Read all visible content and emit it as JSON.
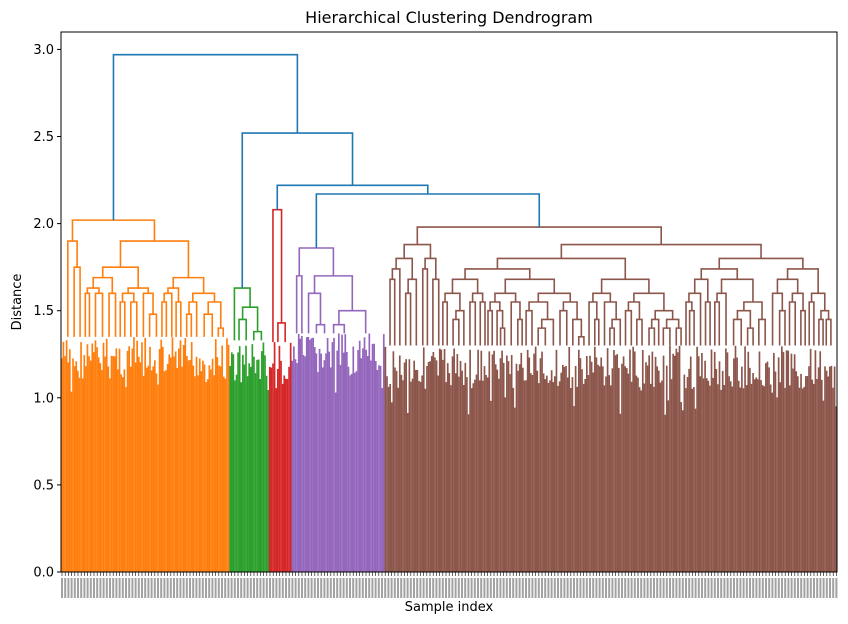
{
  "chart_data": {
    "type": "dendrogram",
    "title": "Hierarchical Clustering Dendrogram",
    "xlabel": "Sample index",
    "ylabel": "Distance",
    "ylim": [
      0,
      3.1
    ],
    "yticks": [
      "0.0",
      "0.5",
      "1.0",
      "1.5",
      "2.0",
      "2.5",
      "3.0"
    ],
    "link_color": "#1f77b4",
    "clusters": [
      {
        "color": "#ff7f0e",
        "leaf_fraction": 0.217,
        "top_height": 2.02,
        "sub_merges": [
          1.96,
          1.9,
          1.75,
          1.69,
          1.63,
          1.6,
          1.55,
          1.48,
          1.4
        ]
      },
      {
        "color": "#2ca02c",
        "leaf_fraction": 0.051,
        "top_height": 1.63,
        "sub_merges": [
          1.57,
          1.52,
          1.45,
          1.38
        ]
      },
      {
        "color": "#d62728",
        "leaf_fraction": 0.029,
        "top_height": 2.08,
        "sub_merges": [
          1.52,
          1.43,
          1.37
        ]
      },
      {
        "color": "#9467bd",
        "leaf_fraction": 0.12,
        "top_height": 1.86,
        "sub_merges": [
          1.8,
          1.7,
          1.6,
          1.5,
          1.42
        ]
      },
      {
        "color": "#8c564b",
        "leaf_fraction": 0.583,
        "top_height": 1.98,
        "sub_merges": [
          1.93,
          1.88,
          1.8,
          1.74,
          1.68,
          1.6,
          1.55,
          1.5,
          1.45,
          1.4,
          1.35
        ]
      }
    ],
    "upper_links": [
      {
        "left": "orange",
        "right": "rest",
        "height": 2.97
      },
      {
        "left": "green",
        "right": "red-purple-brown",
        "height": 2.52
      },
      {
        "left": "red",
        "right": "purple-brown",
        "height": 2.22
      },
      {
        "left": "purple",
        "right": "brown",
        "height": 2.17
      }
    ]
  }
}
